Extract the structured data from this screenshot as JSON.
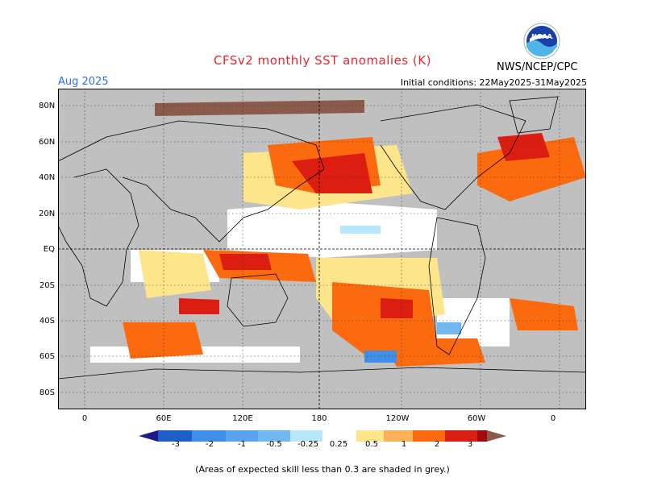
{
  "header": {
    "title": "CFSv2 monthly SST anomalies (K)",
    "agency": "NWS/NCEP/CPC",
    "logo_text": "NOAA",
    "valid_month": "Aug 2025",
    "initial_conditions": "Initial conditions: 22May2025-31May2025"
  },
  "axes": {
    "lat_labels": [
      "80N",
      "60N",
      "40N",
      "20N",
      "EQ",
      "20S",
      "40S",
      "60S",
      "80S"
    ],
    "lon_labels": [
      "0",
      "60E",
      "120E",
      "180",
      "120W",
      "60W",
      "0"
    ]
  },
  "colorbar": {
    "labels": [
      "-3",
      "-2",
      "-1",
      "-0.5",
      "-0.25",
      "0.25",
      "0.5",
      "1",
      "2",
      "3"
    ],
    "colors": [
      "#1f1a8a",
      "#1f5ec9",
      "#3f8ee8",
      "#73b7f0",
      "#b8e6fa",
      "#ffffff",
      "#fde58c",
      "#fdb05a",
      "#fb6a0f",
      "#dc1e12",
      "#9e0c0c",
      "#8a5a4a"
    ]
  },
  "footnote": "(Areas of expected skill less than 0.3 are shaded in grey.)"
}
